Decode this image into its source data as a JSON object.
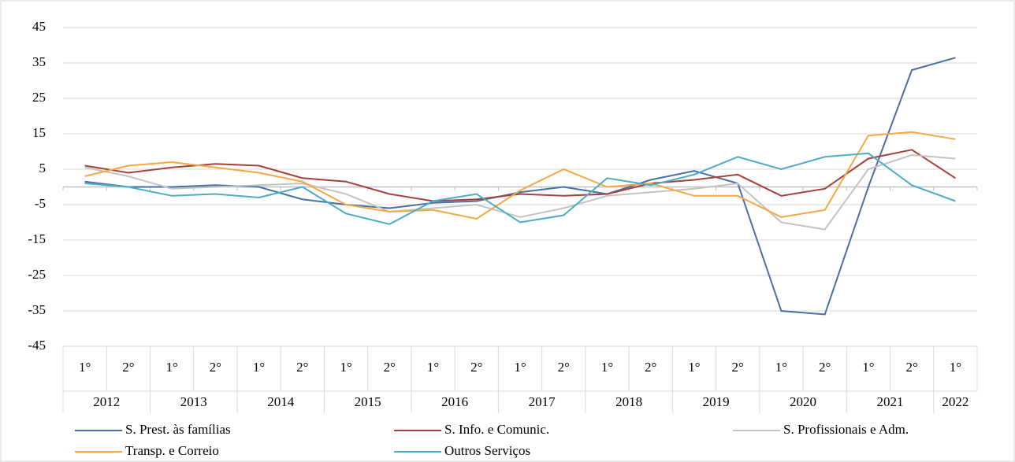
{
  "chart_data": {
    "type": "line",
    "categories": [
      "1°",
      "2°",
      "1°",
      "2°",
      "1°",
      "2°",
      "1°",
      "2°",
      "1°",
      "2°",
      "1°",
      "2°",
      "1°",
      "2°",
      "1°",
      "2°",
      "1°",
      "2°",
      "1°",
      "2°",
      "1°"
    ],
    "years": [
      "2012",
      "2013",
      "2014",
      "2015",
      "2016",
      "2017",
      "2018",
      "2019",
      "2020",
      "2021",
      "2022"
    ],
    "ylim": [
      -45,
      45
    ],
    "yticks": [
      45,
      35,
      25,
      15,
      5,
      -5,
      -15,
      -25,
      -35,
      -45
    ],
    "grid": true,
    "legend": "bottom",
    "series": [
      {
        "name": "S. Prest. às famílias",
        "color": "#4a6fa5",
        "values": [
          1.5,
          0,
          0,
          0.5,
          0,
          -3.5,
          -5,
          -6,
          -4.5,
          -4,
          -1.5,
          0,
          -2,
          2,
          4.5,
          1,
          -35,
          -36,
          0,
          33,
          36.5
        ]
      },
      {
        "name": "S. Info. e Comunic.",
        "color": "#a5403c",
        "values": [
          6,
          4,
          5.5,
          6.5,
          6,
          2.5,
          1.5,
          -2,
          -4,
          -3.5,
          -2,
          -2.5,
          -2,
          1,
          2,
          3.5,
          -2.5,
          -0.5,
          8,
          10.5,
          2.5
        ]
      },
      {
        "name": "S. Profissionais e Adm.",
        "color": "#c3c3c3",
        "values": [
          5.5,
          3,
          -0.5,
          0,
          0.5,
          1,
          -2,
          -7,
          -6,
          -5,
          -8.5,
          -6,
          -2.5,
          -1.5,
          -0.5,
          1,
          -10,
          -12,
          5,
          9,
          8
        ]
      },
      {
        "name": "Transp. e Correio",
        "color": "#f4a742",
        "values": [
          3,
          6,
          7,
          5.5,
          4,
          1.5,
          -5,
          -7,
          -6.5,
          -9,
          -1,
          5,
          0,
          1,
          -2.5,
          -2.5,
          -8.5,
          -6.5,
          14.5,
          15.5,
          13.5
        ]
      },
      {
        "name": "Outros Serviços",
        "color": "#4bacc6",
        "values": [
          1,
          0,
          -2.5,
          -2,
          -3,
          0,
          -7.5,
          -10.5,
          -4,
          -2,
          -10,
          -8,
          2.5,
          0.5,
          3.5,
          8.5,
          5,
          8.5,
          9.5,
          0.5,
          -4
        ]
      }
    ]
  }
}
